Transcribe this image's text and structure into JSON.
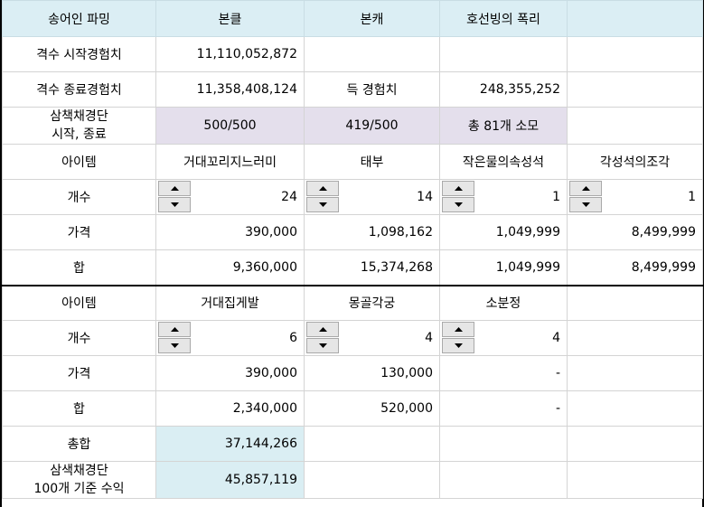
{
  "header": [
    "송어인 파밍",
    "본클",
    "본캐",
    "호선빙의 폭리",
    ""
  ],
  "start_exp": {
    "label": "격수 시작경험치",
    "value": "11,110,052,872"
  },
  "end_exp": {
    "label": "격수 종료경험치",
    "value": "11,358,408,124",
    "gain_label": "득 경험치",
    "gain_value": "248,355,252"
  },
  "samsaek": {
    "label_line1": "삼책채경단",
    "label_line2": "시작, 종료",
    "v1": "500/500",
    "v2": "419/500",
    "v3": "총 81개 소모"
  },
  "block1": {
    "item_label": "아이템",
    "items": [
      "거대꼬리지느러미",
      "태부",
      "작은물의속성석",
      "각성석의조각"
    ],
    "count_label": "개수",
    "counts": [
      "24",
      "14",
      "1",
      "1"
    ],
    "price_label": "가격",
    "prices": [
      "390,000",
      "1,098,162",
      "1,049,999",
      "8,499,999"
    ],
    "sum_label": "합",
    "sums": [
      "9,360,000",
      "15,374,268",
      "1,049,999",
      "8,499,999"
    ]
  },
  "block2": {
    "item_label": "아이템",
    "items": [
      "거대집게발",
      "몽골각궁",
      "소분정"
    ],
    "count_label": "개수",
    "counts": [
      "6",
      "4",
      "4"
    ],
    "price_label": "가격",
    "prices": [
      "390,000",
      "130,000",
      "-"
    ],
    "sum_label": "합",
    "sums": [
      "2,340,000",
      "520,000",
      "-"
    ]
  },
  "total": {
    "label": "총합",
    "value": "37,144,266"
  },
  "profit": {
    "label_line1": "삼색채경단",
    "label_line2": "100개 기준 수익",
    "value": "45,857,119"
  },
  "colors": {
    "header_bg": "#dbeef4",
    "purple_bg": "#e4dfec",
    "blue_bg": "#daeef3"
  },
  "icons": {
    "up": "triangle-up-icon",
    "down": "triangle-down-icon"
  }
}
